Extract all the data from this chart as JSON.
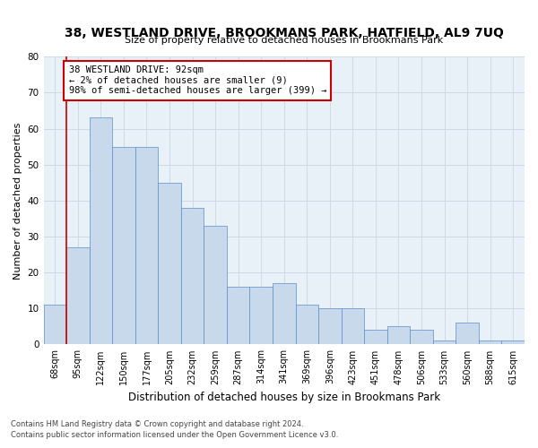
{
  "title": "38, WESTLAND DRIVE, BROOKMANS PARK, HATFIELD, AL9 7UQ",
  "subtitle": "Size of property relative to detached houses in Brookmans Park",
  "xlabel": "Distribution of detached houses by size in Brookmans Park",
  "ylabel": "Number of detached properties",
  "bar_labels": [
    "68sqm",
    "95sqm",
    "122sqm",
    "150sqm",
    "177sqm",
    "205sqm",
    "232sqm",
    "259sqm",
    "287sqm",
    "314sqm",
    "341sqm",
    "369sqm",
    "396sqm",
    "423sqm",
    "451sqm",
    "478sqm",
    "506sqm",
    "533sqm",
    "560sqm",
    "588sqm",
    "615sqm"
  ],
  "bar_values": [
    11,
    27,
    63,
    55,
    55,
    45,
    38,
    33,
    16,
    16,
    17,
    11,
    10,
    10,
    4,
    5,
    4,
    1,
    6,
    1,
    1
  ],
  "bar_color": "#c9d9ec",
  "bar_edge_color": "#5b8fc9",
  "ylim": [
    0,
    80
  ],
  "yticks": [
    0,
    10,
    20,
    30,
    40,
    50,
    60,
    70,
    80
  ],
  "annotation_title": "38 WESTLAND DRIVE: 92sqm",
  "annotation_line1": "← 2% of detached houses are smaller (9)",
  "annotation_line2": "98% of semi-detached houses are larger (399) →",
  "annotation_box_color": "#ffffff",
  "annotation_box_edge": "#cc0000",
  "property_line_color": "#cc0000",
  "grid_color": "#cddaea",
  "background_color": "#e8f0f8",
  "footer1": "Contains HM Land Registry data © Crown copyright and database right 2024.",
  "footer2": "Contains public sector information licensed under the Open Government Licence v3.0."
}
